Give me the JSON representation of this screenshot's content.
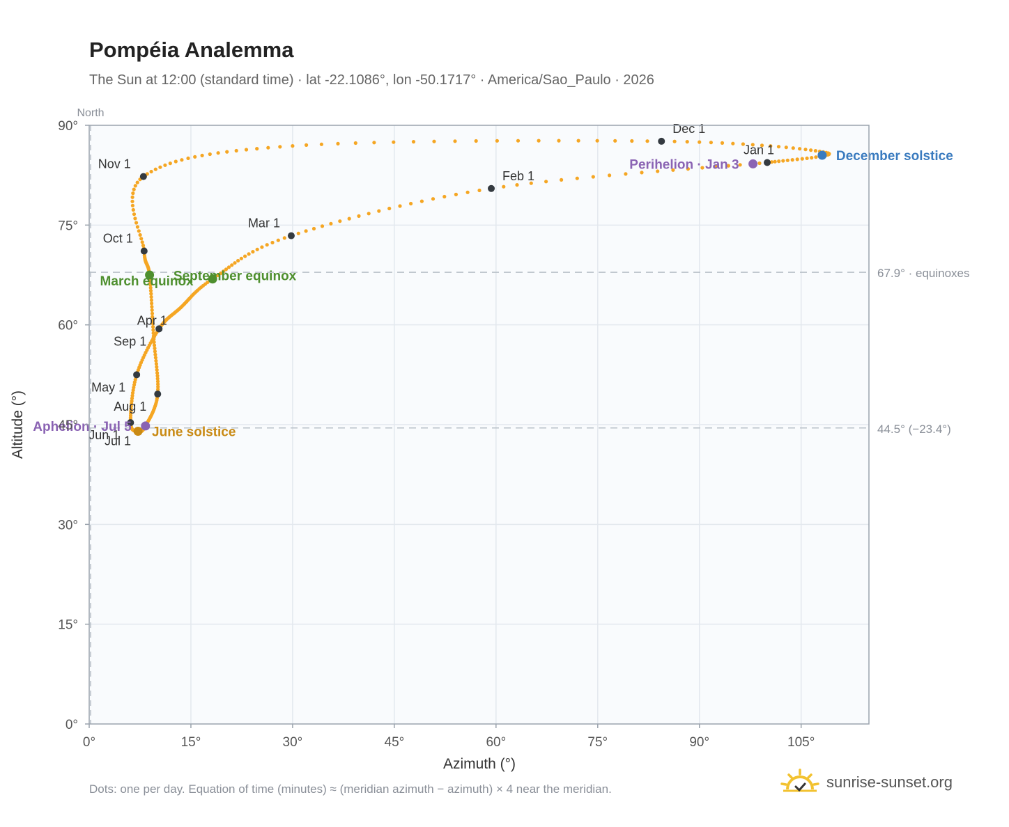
{
  "header": {
    "title": "Pompéia Analemma",
    "subtitle": "The Sun at 12:00 (standard time) · lat -22.1086°, lon -50.1717° · America/Sao_Paulo · 2026"
  },
  "footer": {
    "note": "Dots: one per day. Equation of time (minutes) ≈ (meridian azimuth − azimuth) × 4 near the meridian.",
    "brand": "sunrise-sunset.org"
  },
  "colors": {
    "path": "#f5a623",
    "month_marker": "#343a40",
    "equinox": "#4e8f2e",
    "june_solstice": "#c98a14",
    "december_solstice": "#3a7bbf",
    "apsis": "#8a63b3",
    "reference": "#b8c0c8",
    "plot_bg": "#f9fbfd",
    "brand_sun": "#f2c230"
  },
  "chart_data": {
    "type": "scatter",
    "xlabel": "Azimuth (°)",
    "ylabel": "Altitude (°)",
    "xlim": [
      0,
      115
    ],
    "ylim": [
      0,
      90
    ],
    "x_ticks": [
      0,
      15,
      30,
      45,
      60,
      75,
      90,
      105
    ],
    "y_ticks": [
      0,
      15,
      30,
      45,
      60,
      75,
      90
    ],
    "x_tick_labels": [
      "0°",
      "15°",
      "30°",
      "45°",
      "60°",
      "75°",
      "90°",
      "105°"
    ],
    "y_tick_labels": [
      "0°",
      "15°",
      "30°",
      "45°",
      "60°",
      "75°",
      "90°"
    ],
    "grid": true,
    "direction_label": "North",
    "path_anchors": [
      {
        "x": 100.0,
        "y": 84.4
      },
      {
        "x": 59.3,
        "y": 80.5
      },
      {
        "x": 29.8,
        "y": 73.4
      },
      {
        "x": 18.2,
        "y": 66.9
      },
      {
        "x": 13.5,
        "y": 62.6
      },
      {
        "x": 10.3,
        "y": 59.4
      },
      {
        "x": 7.0,
        "y": 52.5
      },
      {
        "x": 6.1,
        "y": 45.3
      },
      {
        "x": 7.2,
        "y": 44.0
      },
      {
        "x": 8.3,
        "y": 44.8
      },
      {
        "x": 10.1,
        "y": 49.6
      },
      {
        "x": 9.5,
        "y": 58.3
      },
      {
        "x": 8.9,
        "y": 67.5
      },
      {
        "x": 8.1,
        "y": 71.1
      },
      {
        "x": 8.0,
        "y": 82.3
      },
      {
        "x": 30.0,
        "y": 86.9
      },
      {
        "x": 84.4,
        "y": 87.6
      },
      {
        "x": 108.7,
        "y": 85.9
      },
      {
        "x": 100.0,
        "y": 84.4
      }
    ],
    "month_markers": [
      {
        "label": "Jan 1",
        "x": 100.0,
        "y": 84.4,
        "anchor": "end",
        "dx": 10,
        "dy": -12
      },
      {
        "label": "Feb 1",
        "x": 59.3,
        "y": 80.5,
        "anchor": "start",
        "dx": 16,
        "dy": -12
      },
      {
        "label": "Mar 1",
        "x": 29.8,
        "y": 73.4,
        "anchor": "end",
        "dx": -16,
        "dy": -12
      },
      {
        "label": "Apr 1",
        "x": 10.3,
        "y": 59.4,
        "anchor": "middle",
        "dx": -10,
        "dy": -6
      },
      {
        "label": "May 1",
        "x": 7.0,
        "y": 52.5,
        "anchor": "end",
        "dx": -16,
        "dy": 24
      },
      {
        "label": "Jun 1",
        "x": 6.1,
        "y": 45.3,
        "anchor": "end",
        "dx": -16,
        "dy": 24
      },
      {
        "label": "Jul 1",
        "x": 7.2,
        "y": 44.0,
        "anchor": "end",
        "dx": -10,
        "dy": 20
      },
      {
        "label": "Aug 1",
        "x": 10.1,
        "y": 49.6,
        "anchor": "end",
        "dx": -16,
        "dy": 24
      },
      {
        "label": "Sep 1",
        "x": 10.3,
        "y": 59.4,
        "anchor": "end",
        "dx": -18,
        "dy": 24
      },
      {
        "label": "Oct 1",
        "x": 8.1,
        "y": 71.1,
        "anchor": "end",
        "dx": -16,
        "dy": -12
      },
      {
        "label": "Nov 1",
        "x": 8.0,
        "y": 82.3,
        "anchor": "end",
        "dx": -18,
        "dy": -12
      },
      {
        "label": "Dec 1",
        "x": 84.4,
        "y": 87.6,
        "anchor": "start",
        "dx": 16,
        "dy": -12
      }
    ],
    "events": [
      {
        "label": "March equinox",
        "x": 8.9,
        "y": 67.5,
        "color": "#4e8f2e",
        "anchor": "middle",
        "dx": -4,
        "dy": 15
      },
      {
        "label": "September equinox",
        "x": 18.2,
        "y": 66.9,
        "color": "#4e8f2e",
        "anchor": "middle",
        "dx": 32,
        "dy": 2
      },
      {
        "label": "June solstice",
        "x": 7.2,
        "y": 44.0,
        "color": "#c98a14",
        "anchor": "start",
        "dx": 20,
        "dy": 7
      },
      {
        "label": "December solstice",
        "x": 108.1,
        "y": 85.5,
        "color": "#3a7bbf",
        "anchor": "start",
        "dx": 20,
        "dy": 7
      },
      {
        "label": "Perihelion · Jan 3",
        "x": 97.9,
        "y": 84.2,
        "color": "#8a63b3",
        "anchor": "end",
        "dx": -20,
        "dy": 7
      },
      {
        "label": "Aphelion · Jul 5",
        "x": 8.3,
        "y": 44.8,
        "color": "#8a63b3",
        "anchor": "end",
        "dx": -20,
        "dy": 7
      }
    ],
    "reference_lines": [
      {
        "y": 67.9,
        "label": "67.9° · equinoxes"
      },
      {
        "y": 44.5,
        "label": "44.5° (−23.4°)"
      }
    ]
  }
}
